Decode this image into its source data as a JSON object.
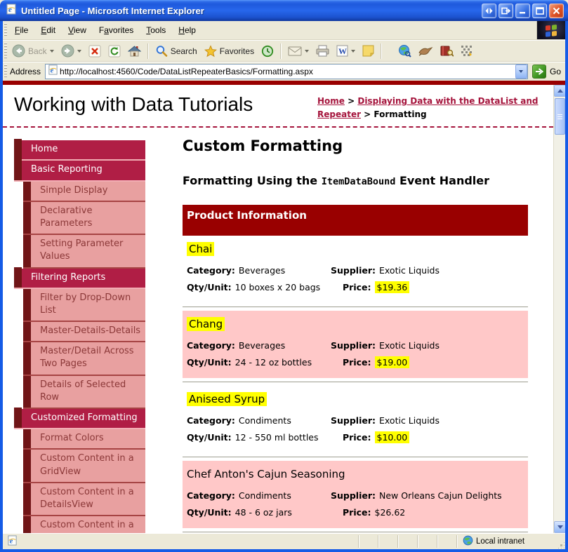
{
  "window": {
    "title": "Untitled Page - Microsoft Internet Explorer"
  },
  "menu": {
    "items": [
      {
        "label": "File",
        "accel": 0
      },
      {
        "label": "Edit",
        "accel": 0
      },
      {
        "label": "View",
        "accel": 0
      },
      {
        "label": "Favorites",
        "accel": 1
      },
      {
        "label": "Tools",
        "accel": 0
      },
      {
        "label": "Help",
        "accel": 0
      }
    ]
  },
  "toolbar": {
    "back": "Back",
    "search": "Search",
    "favorites": "Favorites"
  },
  "address": {
    "label": "Address",
    "url": "http://localhost:4560/Code/DataListRepeaterBasics/Formatting.aspx",
    "go": "Go"
  },
  "header": {
    "site_title": "Working with Data Tutorials",
    "separator": ">",
    "breadcrumb": [
      {
        "label": "Home",
        "link": true
      },
      {
        "label": "Displaying Data with the DataList and Repeater",
        "link": true
      },
      {
        "label": "Formatting",
        "link": false
      }
    ]
  },
  "sidebar": {
    "items": [
      {
        "label": "Home",
        "level": "main"
      },
      {
        "label": "Basic Reporting",
        "level": "main"
      },
      {
        "label": "Simple Display",
        "level": "sub"
      },
      {
        "label": "Declarative Parameters",
        "level": "sub"
      },
      {
        "label": "Setting Parameter Values",
        "level": "sub"
      },
      {
        "label": "Filtering Reports",
        "level": "main"
      },
      {
        "label": "Filter by Drop-Down List",
        "level": "sub"
      },
      {
        "label": "Master-Details-Details",
        "level": "sub"
      },
      {
        "label": "Master/Detail Across Two Pages",
        "level": "sub"
      },
      {
        "label": "Details of Selected Row",
        "level": "sub"
      },
      {
        "label": "Customized Formatting",
        "level": "main"
      },
      {
        "label": "Format Colors",
        "level": "sub"
      },
      {
        "label": "Custom Content in a GridView",
        "level": "sub"
      },
      {
        "label": "Custom Content in a DetailsView",
        "level": "sub"
      },
      {
        "label": "Custom Content in a",
        "level": "sub"
      }
    ]
  },
  "content": {
    "title": "Custom Formatting",
    "subtitle": {
      "pre": "Formatting Using the ",
      "code": "ItemDataBound",
      "post": " Event Handler"
    },
    "panel_header": "Product Information",
    "field_labels": {
      "category": "Category:",
      "supplier": "Supplier:",
      "qty": "Qty/Unit:",
      "price": "Price:"
    },
    "products": [
      {
        "name": "Chai",
        "name_highlight": true,
        "category": "Beverages",
        "supplier": "Exotic Liquids",
        "qty": "10 boxes x 20 bags",
        "price": "$19.36",
        "price_highlight": true,
        "row_pink": false
      },
      {
        "name": "Chang",
        "name_highlight": true,
        "category": "Beverages",
        "supplier": "Exotic Liquids",
        "qty": "24 - 12 oz bottles",
        "price": "$19.00",
        "price_highlight": true,
        "row_pink": true
      },
      {
        "name": "Aniseed Syrup",
        "name_highlight": true,
        "category": "Condiments",
        "supplier": "Exotic Liquids",
        "qty": "12 - 550 ml bottles",
        "price": "$10.00",
        "price_highlight": true,
        "row_pink": false
      },
      {
        "name": "Chef Anton's Cajun Seasoning",
        "name_highlight": false,
        "category": "Condiments",
        "supplier": "New Orleans Cajun Delights",
        "qty": "48 - 6 oz jars",
        "price": "$26.62",
        "price_highlight": false,
        "row_pink": true
      }
    ]
  },
  "status": {
    "zone": "Local intranet"
  },
  "colors": {
    "accent_crimson": "#B01E45",
    "accent_maroon": "#701517",
    "sidebar_pink": "#E8A0A0",
    "row_pink": "#FFC8C8",
    "highlight_yellow": "#FFFF00",
    "panel_red": "#990000",
    "link_red": "#A5143C",
    "titlebar_blue": "#2767EC"
  }
}
